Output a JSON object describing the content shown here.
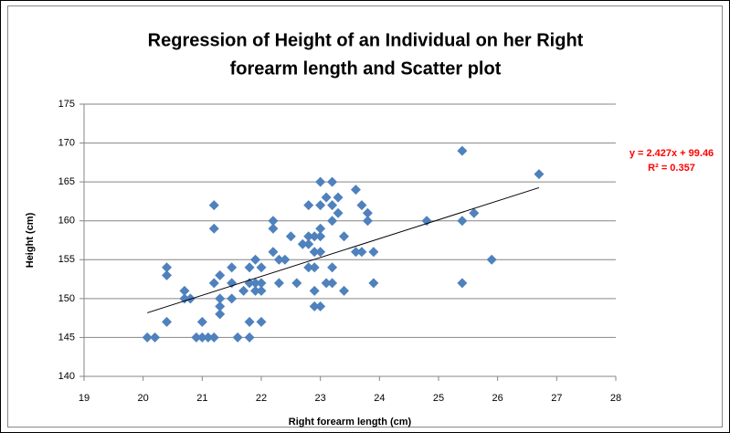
{
  "chart_data": {
    "type": "scatter",
    "title": [
      "Regression of Height of an Individual on her Right",
      "forearm length  and Scatter plot"
    ],
    "x_label": "Right forearm length (cm)",
    "y_label": "Height (cm)",
    "color": "#4f81bd",
    "x": [
      20.07,
      20.2,
      20.4,
      20.4,
      20.4,
      20.7,
      20.7,
      20.8,
      20.9,
      21.0,
      21.0,
      21.1,
      21.2,
      21.2,
      21.2,
      21.2,
      21.3,
      21.3,
      21.3,
      21.3,
      21.5,
      21.5,
      21.5,
      21.6,
      21.7,
      21.8,
      21.8,
      21.8,
      21.8,
      21.9,
      21.9,
      21.9,
      22.0,
      22.0,
      22.0,
      22.0,
      22.2,
      22.2,
      22.2,
      22.3,
      22.3,
      22.4,
      22.5,
      22.6,
      22.7,
      22.8,
      22.8,
      22.8,
      22.8,
      22.9,
      22.9,
      22.9,
      22.9,
      22.9,
      23.0,
      23.0,
      23.0,
      23.0,
      23.0,
      23.0,
      23.1,
      23.1,
      23.2,
      23.2,
      23.2,
      23.2,
      23.2,
      23.3,
      23.3,
      23.4,
      23.4,
      23.6,
      23.6,
      23.7,
      23.7,
      23.8,
      23.8,
      23.9,
      23.9,
      24.8,
      25.4,
      25.4,
      25.4,
      25.6,
      25.9,
      26.7
    ],
    "values": [
      145,
      145,
      154,
      153,
      147,
      151,
      150,
      150,
      145,
      147,
      145,
      145,
      145,
      162,
      159,
      152,
      153,
      150,
      149,
      148,
      152,
      154,
      150,
      145,
      151,
      152,
      154,
      147,
      145,
      155,
      152,
      151,
      154,
      152,
      151,
      147,
      160,
      159,
      156,
      155,
      152,
      155,
      158,
      152,
      157,
      157,
      162,
      154,
      158,
      158,
      156,
      154,
      151,
      149,
      165,
      162,
      159,
      158,
      156,
      149,
      163,
      152,
      165,
      160,
      154,
      152,
      162,
      163,
      161,
      158,
      151,
      164,
      156,
      156,
      162,
      161,
      160,
      156,
      152,
      160,
      160,
      152,
      169,
      161,
      155,
      166
    ],
    "xlim": [
      19,
      28
    ],
    "xticks": [
      19,
      20,
      21,
      22,
      23,
      24,
      25,
      26,
      27,
      28
    ],
    "ylim": [
      140,
      175
    ],
    "yticks": [
      140,
      145,
      150,
      155,
      160,
      165,
      170,
      175
    ],
    "grid": true,
    "trendline": {
      "slope": 2.427,
      "intercept": 99.46,
      "equation": "y = 2.427x + 99.46",
      "r_squared": "R² = 0.357",
      "color": "#000000",
      "label_color": "#ff0000"
    }
  }
}
